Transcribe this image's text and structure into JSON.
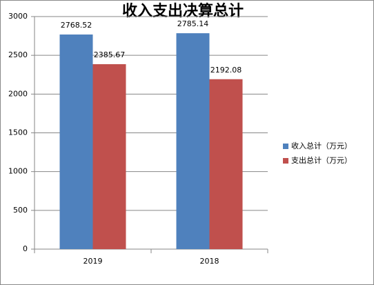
{
  "chart_data": {
    "type": "bar",
    "title": "收入支出决算总计",
    "categories": [
      "2019",
      "2018"
    ],
    "series": [
      {
        "name": "收入总计（万元）",
        "color": "#4f81bd",
        "values": [
          2768.52,
          2785.14
        ]
      },
      {
        "name": "支出总计（万元）",
        "color": "#c0504d",
        "values": [
          2385.67,
          2192.08
        ]
      }
    ],
    "ylim": [
      0,
      3000
    ],
    "yticks": [
      0,
      500,
      1000,
      1500,
      2000,
      2500,
      3000
    ],
    "grid": true,
    "legend": "right"
  }
}
